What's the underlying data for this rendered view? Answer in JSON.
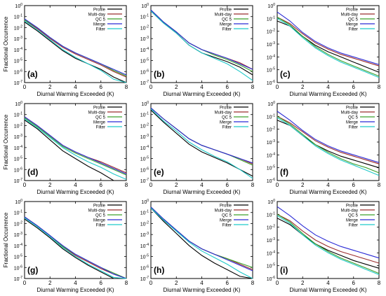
{
  "legend_labels": [
    "Profile",
    "Multi-day",
    "QC 5",
    "Merge",
    "Filter"
  ],
  "colors": {
    "Profile": "#000000",
    "Multi-day": "#9b2d2d",
    "QC 5": "#3ca02c",
    "Merge": "#2b2bd6",
    "Filter": "#1fc9c9"
  },
  "chart_data": [
    {
      "panel_label": "(a)",
      "type": "line",
      "log_y": true,
      "xlim": [
        0,
        8
      ],
      "ylim": [
        1e-07,
        1
      ],
      "xlabel": "Diurnal Warming Exceeded (K)",
      "ylabel": "Fractional Occurrence",
      "x": [
        0,
        1,
        2,
        3,
        4,
        5,
        6,
        7,
        8
      ],
      "series": [
        {
          "name": "Profile",
          "log10": [
            -1.5,
            -2.3,
            -3.2,
            -4.1,
            -4.8,
            -5.3,
            -5.8,
            -6.5,
            -7.0
          ]
        },
        {
          "name": "Multi-day",
          "log10": [
            -1.3,
            -2.1,
            -3.0,
            -3.8,
            -4.4,
            -4.9,
            -5.4,
            -6.0,
            -6.5
          ]
        },
        {
          "name": "QC 5",
          "log10": [
            -1.3,
            -2.0,
            -2.9,
            -3.7,
            -4.3,
            -4.8,
            -5.3,
            -5.9,
            -6.4
          ]
        },
        {
          "name": "Merge",
          "log10": [
            -1.2,
            -2.0,
            -2.9,
            -3.7,
            -4.3,
            -4.8,
            -5.3,
            -5.8,
            -6.3
          ]
        },
        {
          "name": "Filter",
          "log10": [
            -1.4,
            -2.2,
            -3.1,
            -4.0,
            -4.7,
            -5.3,
            -5.9,
            -6.7,
            -7.0
          ]
        }
      ]
    },
    {
      "panel_label": "(b)",
      "type": "line",
      "log_y": true,
      "xlim": [
        0,
        8
      ],
      "ylim": [
        1e-07,
        1
      ],
      "xlabel": "Diurnal Warming Exceeded (K)",
      "ylabel": "",
      "x": [
        0,
        1,
        2,
        3,
        4,
        5,
        6,
        7,
        8
      ],
      "series": [
        {
          "name": "Profile",
          "log10": [
            -0.5,
            -1.6,
            -2.5,
            -3.6,
            -4.3,
            -4.7,
            -5.1,
            -5.6,
            -6.3
          ]
        },
        {
          "name": "Multi-day",
          "log10": [
            -0.4,
            -1.5,
            -2.4,
            -3.4,
            -4.0,
            -4.4,
            -4.8,
            -5.2,
            -5.8
          ]
        },
        {
          "name": "QC 5",
          "log10": [
            -0.4,
            -1.5,
            -2.4,
            -3.4,
            -4.0,
            -4.5,
            -4.9,
            -5.4,
            -6.0
          ]
        },
        {
          "name": "Merge",
          "log10": [
            -0.4,
            -1.5,
            -2.4,
            -3.4,
            -4.0,
            -4.4,
            -4.8,
            -5.3,
            -5.8
          ]
        },
        {
          "name": "Filter",
          "log10": [
            -0.5,
            -1.6,
            -2.5,
            -3.6,
            -4.3,
            -4.8,
            -5.3,
            -6.0,
            -6.8
          ]
        }
      ]
    },
    {
      "panel_label": "(c)",
      "type": "line",
      "log_y": true,
      "xlim": [
        0,
        8
      ],
      "ylim": [
        1e-06,
        1
      ],
      "xlabel": "Diurnal Warming Exceeded (K)",
      "ylabel": "",
      "x": [
        0,
        1,
        2,
        3,
        4,
        5,
        6,
        7,
        8
      ],
      "series": [
        {
          "name": "Profile",
          "log10": [
            -1.2,
            -1.6,
            -2.4,
            -3.1,
            -3.6,
            -4.0,
            -4.4,
            -4.8,
            -5.2
          ]
        },
        {
          "name": "Multi-day",
          "log10": [
            -0.9,
            -1.4,
            -2.2,
            -2.9,
            -3.4,
            -3.8,
            -4.1,
            -4.4,
            -4.7
          ]
        },
        {
          "name": "QC 5",
          "log10": [
            -0.9,
            -1.5,
            -2.4,
            -3.2,
            -3.8,
            -4.3,
            -4.7,
            -5.1,
            -5.5
          ]
        },
        {
          "name": "Merge",
          "log10": [
            -0.5,
            -1.2,
            -2.1,
            -2.8,
            -3.3,
            -3.7,
            -4.0,
            -4.3,
            -4.6
          ]
        },
        {
          "name": "Filter",
          "log10": [
            -1.0,
            -1.6,
            -2.5,
            -3.3,
            -3.9,
            -4.4,
            -4.8,
            -5.2,
            -5.6
          ]
        }
      ]
    },
    {
      "panel_label": "(d)",
      "type": "line",
      "log_y": true,
      "xlim": [
        0,
        8
      ],
      "ylim": [
        1e-07,
        1
      ],
      "xlabel": "Diurnal Warming Exceeded (K)",
      "ylabel": "Fractional Occurrence",
      "x": [
        0,
        1,
        2,
        3,
        4,
        5,
        6,
        7,
        8
      ],
      "series": [
        {
          "name": "Profile",
          "log10": [
            -1.5,
            -2.3,
            -3.3,
            -4.3,
            -5.0,
            -5.7,
            -6.3,
            -7.0,
            -7.0
          ]
        },
        {
          "name": "Multi-day",
          "log10": [
            -1.2,
            -2.0,
            -2.9,
            -3.8,
            -4.4,
            -4.9,
            -5.3,
            -5.8,
            -6.3
          ]
        },
        {
          "name": "QC 5",
          "log10": [
            -1.3,
            -2.1,
            -3.0,
            -3.9,
            -4.5,
            -5.0,
            -5.5,
            -6.0,
            -6.5
          ]
        },
        {
          "name": "Merge",
          "log10": [
            -1.2,
            -2.0,
            -2.9,
            -3.8,
            -4.4,
            -4.9,
            -5.4,
            -5.9,
            -6.4
          ]
        },
        {
          "name": "Filter",
          "log10": [
            -1.4,
            -2.2,
            -3.1,
            -4.0,
            -4.7,
            -5.3,
            -5.8,
            -6.4,
            -6.9
          ]
        }
      ]
    },
    {
      "panel_label": "(e)",
      "type": "line",
      "log_y": true,
      "xlim": [
        0,
        8
      ],
      "ylim": [
        1e-07,
        1
      ],
      "xlabel": "Diurnal Warming Exceeded (K)",
      "ylabel": "",
      "x": [
        0,
        1,
        2,
        3,
        4,
        5,
        6,
        7,
        8
      ],
      "series": [
        {
          "name": "Profile",
          "log10": [
            -0.6,
            -1.7,
            -2.7,
            -3.7,
            -4.4,
            -4.9,
            -5.4,
            -6.0,
            -6.6
          ]
        },
        {
          "name": "Multi-day",
          "log10": [
            -0.4,
            -1.4,
            -2.3,
            -3.2,
            -3.8,
            -4.2,
            -4.6,
            -5.0,
            -5.5
          ]
        },
        {
          "name": "QC 5",
          "log10": [
            -0.4,
            -1.4,
            -2.3,
            -3.2,
            -3.8,
            -4.2,
            -4.6,
            -5.1,
            -5.6
          ]
        },
        {
          "name": "Merge",
          "log10": [
            -0.4,
            -1.4,
            -2.3,
            -3.2,
            -3.8,
            -4.2,
            -4.6,
            -5.0,
            -5.4
          ]
        },
        {
          "name": "Filter",
          "log10": [
            -0.5,
            -1.6,
            -2.5,
            -3.5,
            -4.2,
            -4.8,
            -5.3,
            -6.0,
            -6.8
          ]
        }
      ]
    },
    {
      "panel_label": "(f)",
      "type": "line",
      "log_y": true,
      "xlim": [
        0,
        8
      ],
      "ylim": [
        1e-06,
        1
      ],
      "xlabel": "Diurnal Warming Exceeded (K)",
      "ylabel": "",
      "x": [
        0,
        1,
        2,
        3,
        4,
        5,
        6,
        7,
        8
      ],
      "series": [
        {
          "name": "Profile",
          "log10": [
            -1.3,
            -1.7,
            -2.5,
            -3.2,
            -3.7,
            -4.1,
            -4.4,
            -4.7,
            -5.0
          ]
        },
        {
          "name": "Multi-day",
          "log10": [
            -1.0,
            -1.5,
            -2.2,
            -2.9,
            -3.4,
            -3.8,
            -4.1,
            -4.4,
            -4.7
          ]
        },
        {
          "name": "QC 5",
          "log10": [
            -1.0,
            -1.6,
            -2.4,
            -3.2,
            -3.8,
            -4.3,
            -4.7,
            -5.0,
            -5.4
          ]
        },
        {
          "name": "Merge",
          "log10": [
            -0.6,
            -1.3,
            -2.1,
            -2.8,
            -3.3,
            -3.7,
            -4.0,
            -4.3,
            -4.6
          ]
        },
        {
          "name": "Filter",
          "log10": [
            -1.1,
            -1.7,
            -2.5,
            -3.3,
            -3.9,
            -4.4,
            -4.8,
            -5.2,
            -5.6
          ]
        }
      ]
    },
    {
      "panel_label": "(g)",
      "type": "line",
      "log_y": true,
      "xlim": [
        0,
        8
      ],
      "ylim": [
        1e-07,
        1
      ],
      "xlabel": "Diurnal Warming Exceeded (K)",
      "ylabel": "Fractional Occurrence",
      "x": [
        0,
        1,
        2,
        3,
        4,
        5,
        6,
        7,
        8
      ],
      "series": [
        {
          "name": "Profile",
          "log10": [
            -1.6,
            -2.4,
            -3.3,
            -4.3,
            -5.1,
            -5.8,
            -6.4,
            -7.0,
            -7.0
          ]
        },
        {
          "name": "Multi-day",
          "log10": [
            -1.4,
            -2.2,
            -3.1,
            -4.1,
            -4.9,
            -5.5,
            -6.1,
            -6.6,
            -7.0
          ]
        },
        {
          "name": "QC 5",
          "log10": [
            -1.4,
            -2.2,
            -3.1,
            -4.1,
            -4.8,
            -5.4,
            -6.0,
            -6.5,
            -7.0
          ]
        },
        {
          "name": "Merge",
          "log10": [
            -1.4,
            -2.2,
            -3.1,
            -4.0,
            -4.8,
            -5.4,
            -6.0,
            -6.6,
            -7.0
          ]
        },
        {
          "name": "Filter",
          "log10": [
            -1.5,
            -2.3,
            -3.2,
            -4.2,
            -5.0,
            -5.7,
            -6.3,
            -6.9,
            -7.0
          ]
        }
      ]
    },
    {
      "panel_label": "(h)",
      "type": "line",
      "log_y": true,
      "xlim": [
        0,
        8
      ],
      "ylim": [
        1e-07,
        1
      ],
      "xlabel": "Diurnal Warming Exceeded (K)",
      "ylabel": "",
      "x": [
        0,
        1,
        2,
        3,
        4,
        5,
        6,
        7,
        8
      ],
      "series": [
        {
          "name": "Profile",
          "log10": [
            -0.6,
            -1.8,
            -2.9,
            -4.0,
            -4.9,
            -5.6,
            -6.2,
            -6.8,
            -7.0
          ]
        },
        {
          "name": "Multi-day",
          "log10": [
            -0.5,
            -1.6,
            -2.6,
            -3.6,
            -4.3,
            -4.8,
            -5.2,
            -5.7,
            -6.2
          ]
        },
        {
          "name": "QC 5",
          "log10": [
            -0.5,
            -1.6,
            -2.6,
            -3.6,
            -4.3,
            -4.8,
            -5.2,
            -5.6,
            -6.0
          ]
        },
        {
          "name": "Merge",
          "log10": [
            -0.5,
            -1.6,
            -2.6,
            -3.6,
            -4.3,
            -4.8,
            -5.3,
            -5.8,
            -6.3
          ]
        },
        {
          "name": "Filter",
          "log10": [
            -0.6,
            -1.7,
            -2.7,
            -3.7,
            -4.5,
            -5.1,
            -5.7,
            -6.4,
            -7.0
          ]
        }
      ]
    },
    {
      "panel_label": "(i)",
      "type": "line",
      "log_y": true,
      "xlim": [
        0,
        8
      ],
      "ylim": [
        1e-06,
        1
      ],
      "xlabel": "Diurnal Warming Exceeded (K)",
      "ylabel": "",
      "x": [
        0,
        1,
        2,
        3,
        4,
        5,
        6,
        7,
        8
      ],
      "series": [
        {
          "name": "Profile",
          "log10": [
            -1.3,
            -1.8,
            -2.6,
            -3.3,
            -3.8,
            -4.2,
            -4.6,
            -4.9,
            -5.2
          ]
        },
        {
          "name": "Multi-day",
          "log10": [
            -1.0,
            -1.5,
            -2.3,
            -3.0,
            -3.5,
            -3.9,
            -4.2,
            -4.5,
            -4.8
          ]
        },
        {
          "name": "QC 5",
          "log10": [
            -1.0,
            -1.6,
            -2.5,
            -3.3,
            -3.9,
            -4.4,
            -4.8,
            -5.2,
            -5.6
          ]
        },
        {
          "name": "Merge",
          "log10": [
            -0.4,
            -1.1,
            -1.9,
            -2.6,
            -3.1,
            -3.5,
            -3.8,
            -4.1,
            -4.4
          ]
        },
        {
          "name": "Filter",
          "log10": [
            -1.1,
            -1.7,
            -2.6,
            -3.4,
            -4.0,
            -4.5,
            -4.9,
            -5.3,
            -5.7
          ]
        }
      ]
    }
  ]
}
